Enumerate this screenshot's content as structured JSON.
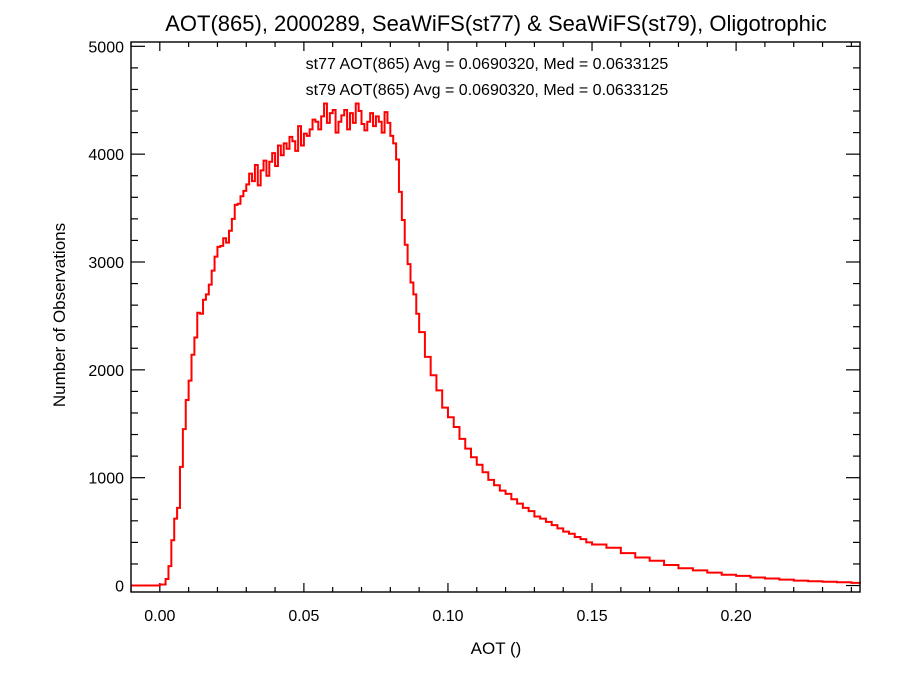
{
  "chart_data": {
    "type": "step-histogram",
    "title": "AOT(865), 2000289, SeaWiFS(st77) & SeaWiFS(st79), Oligotrophic",
    "xlabel": "AOT ()",
    "ylabel": "Number of Observations",
    "xlim": [
      -0.01,
      0.243
    ],
    "ylim": [
      -60,
      5040
    ],
    "xticks": [
      0.0,
      0.05,
      0.1,
      0.15,
      0.2
    ],
    "xtick_labels": [
      "0.00",
      "0.05",
      "0.10",
      "0.15",
      "0.20"
    ],
    "yticks": [
      0,
      1000,
      2000,
      3000,
      4000,
      5000
    ],
    "ytick_labels": [
      "0",
      "1000",
      "2000",
      "3000",
      "4000",
      "5000"
    ],
    "bin_width": 0.001,
    "grid": false,
    "annotations": [
      {
        "text": "st77 AOT(865) Avg = 0.0690320, Med = 0.0633125",
        "color": "#000000"
      },
      {
        "text": "st79 AOT(865) Avg = 0.0690320, Med = 0.0633125",
        "color": "#ff0000"
      }
    ],
    "series": [
      {
        "color": "#ff0000",
        "x": [
          -0.01,
          0.0,
          0.002,
          0.003,
          0.004,
          0.005,
          0.006,
          0.007,
          0.008,
          0.009,
          0.01,
          0.011,
          0.012,
          0.013,
          0.014,
          0.015,
          0.016,
          0.017,
          0.018,
          0.019,
          0.02,
          0.021,
          0.022,
          0.023,
          0.024,
          0.025,
          0.026,
          0.027,
          0.028,
          0.029,
          0.03,
          0.031,
          0.032,
          0.033,
          0.034,
          0.035,
          0.036,
          0.037,
          0.038,
          0.039,
          0.04,
          0.041,
          0.042,
          0.043,
          0.044,
          0.045,
          0.046,
          0.047,
          0.048,
          0.049,
          0.05,
          0.051,
          0.052,
          0.053,
          0.054,
          0.055,
          0.056,
          0.057,
          0.058,
          0.059,
          0.06,
          0.061,
          0.062,
          0.063,
          0.064,
          0.065,
          0.066,
          0.067,
          0.068,
          0.069,
          0.07,
          0.071,
          0.072,
          0.073,
          0.074,
          0.075,
          0.076,
          0.077,
          0.078,
          0.079,
          0.08,
          0.081,
          0.082,
          0.083,
          0.084,
          0.085,
          0.086,
          0.087,
          0.088,
          0.089,
          0.09,
          0.092,
          0.094,
          0.096,
          0.098,
          0.1,
          0.102,
          0.104,
          0.106,
          0.108,
          0.11,
          0.112,
          0.114,
          0.116,
          0.118,
          0.12,
          0.122,
          0.124,
          0.126,
          0.128,
          0.13,
          0.132,
          0.134,
          0.136,
          0.138,
          0.14,
          0.142,
          0.144,
          0.146,
          0.148,
          0.15,
          0.155,
          0.16,
          0.165,
          0.17,
          0.175,
          0.18,
          0.185,
          0.19,
          0.195,
          0.2,
          0.205,
          0.21,
          0.215,
          0.22,
          0.225,
          0.23,
          0.235,
          0.24,
          0.243
        ],
        "y": [
          0,
          10,
          60,
          180,
          420,
          620,
          720,
          1100,
          1450,
          1720,
          1900,
          2140,
          2300,
          2530,
          2520,
          2650,
          2700,
          2790,
          2920,
          3050,
          3140,
          3150,
          3220,
          3180,
          3290,
          3400,
          3530,
          3540,
          3610,
          3660,
          3720,
          3820,
          3750,
          3900,
          3710,
          3850,
          3940,
          3800,
          3930,
          4010,
          3890,
          4080,
          3990,
          4100,
          4050,
          4160,
          4120,
          4030,
          4260,
          4080,
          4190,
          4170,
          4230,
          4320,
          4300,
          4230,
          4350,
          4470,
          4290,
          4380,
          4410,
          4200,
          4300,
          4360,
          4410,
          4230,
          4380,
          4290,
          4470,
          4400,
          4280,
          4220,
          4300,
          4380,
          4260,
          4350,
          4300,
          4200,
          4390,
          4290,
          4170,
          4100,
          3950,
          3650,
          3390,
          3160,
          2980,
          2810,
          2700,
          2520,
          2350,
          2120,
          1950,
          1810,
          1650,
          1560,
          1470,
          1360,
          1270,
          1190,
          1120,
          1050,
          980,
          930,
          880,
          850,
          800,
          760,
          720,
          690,
          640,
          620,
          590,
          560,
          530,
          500,
          480,
          450,
          430,
          400,
          380,
          350,
          300,
          260,
          230,
          190,
          160,
          140,
          120,
          100,
          90,
          75,
          65,
          55,
          45,
          40,
          35,
          30,
          25,
          20
        ]
      }
    ]
  }
}
